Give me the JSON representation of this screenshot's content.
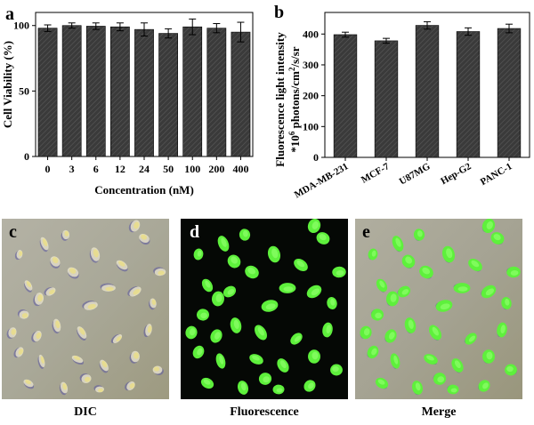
{
  "panels": {
    "a": "a",
    "b": "b",
    "c": "c",
    "d": "d",
    "e": "e"
  },
  "captions": {
    "c": "DIC",
    "d": "Fluorescence",
    "e": "Merge"
  },
  "colors": {
    "bar_fill": "#3a3a3a",
    "dic_bg": "#a9a898",
    "fluorescence_bg": "#050805",
    "cell_green": "#5ef03c"
  },
  "chart_data": [
    {
      "type": "bar",
      "categories": [
        "0",
        "3",
        "6",
        "12",
        "24",
        "50",
        "100",
        "200",
        "400"
      ],
      "values": [
        98,
        100,
        99.5,
        99,
        97,
        94,
        99,
        98,
        95
      ],
      "errors": [
        2.5,
        2,
        2.5,
        3,
        5,
        3.5,
        6,
        3.5,
        7.5
      ],
      "xlabel": "Concentration (nM)",
      "ylabel": "Cell Viability (%)",
      "ylim": [
        0,
        110
      ],
      "yticks": [
        "0",
        "50",
        "100"
      ],
      "grid": false,
      "bar_pattern": "hatched"
    },
    {
      "type": "bar",
      "categories": [
        "MDA-MB-231",
        "MCF-7",
        "U87MG",
        "Hep-G2",
        "PANC-1"
      ],
      "values": [
        398,
        378,
        428,
        408,
        418
      ],
      "errors": [
        8,
        8,
        12,
        12,
        14
      ],
      "ylabel_line1": "Fluorescence light intensity",
      "ylabel_line2_prefix": "*10",
      "ylabel_line2_sup": "6",
      "ylabel_line2_mid": " photons/cm",
      "ylabel_line2_sup2": "2",
      "ylabel_line2_suffix": "/s/sr",
      "ylim": [
        0,
        470
      ],
      "yticks": [
        "0",
        "100",
        "200",
        "300",
        "400"
      ],
      "grid": false,
      "bar_pattern": "hatched"
    }
  ]
}
